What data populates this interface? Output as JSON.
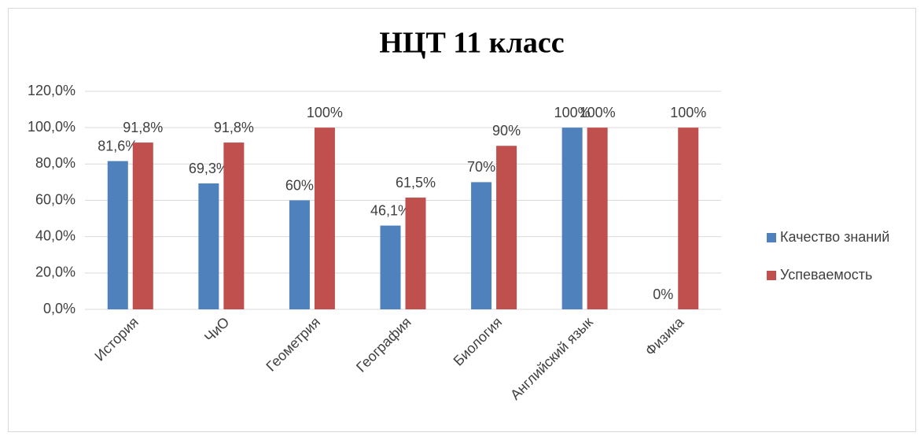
{
  "chart_data": {
    "type": "bar",
    "title": "НЦТ 11 класс",
    "categories": [
      "История",
      "ЧиО",
      "Геометрия",
      "География",
      "Биология",
      "Английский язык",
      "Физика"
    ],
    "series": [
      {
        "name": "Качество знаний",
        "color": "#4f81bd",
        "values": [
          81.6,
          69.3,
          60,
          46.1,
          70,
          100,
          0
        ],
        "value_labels": [
          "81,6%",
          "69,3%",
          "60%",
          "46,1%",
          "70%",
          "100%",
          "0%"
        ]
      },
      {
        "name": "Успеваемость",
        "color": "#c0504d",
        "values": [
          91.8,
          91.8,
          100,
          61.5,
          90,
          100,
          100
        ],
        "value_labels": [
          "91,8%",
          "91,8%",
          "100%",
          "61,5%",
          "90%",
          "100%",
          "100%"
        ]
      }
    ],
    "ylim": [
      0,
      120
    ],
    "yticks": [
      {
        "value": 0,
        "label": "0,0%"
      },
      {
        "value": 20,
        "label": "20,0%"
      },
      {
        "value": 40,
        "label": "40,0%"
      },
      {
        "value": 60,
        "label": "60,0%"
      },
      {
        "value": 80,
        "label": "80,0%"
      },
      {
        "value": 100,
        "label": "100,0%"
      },
      {
        "value": 120,
        "label": "120,0%"
      }
    ],
    "grid": true,
    "legend": "right"
  }
}
